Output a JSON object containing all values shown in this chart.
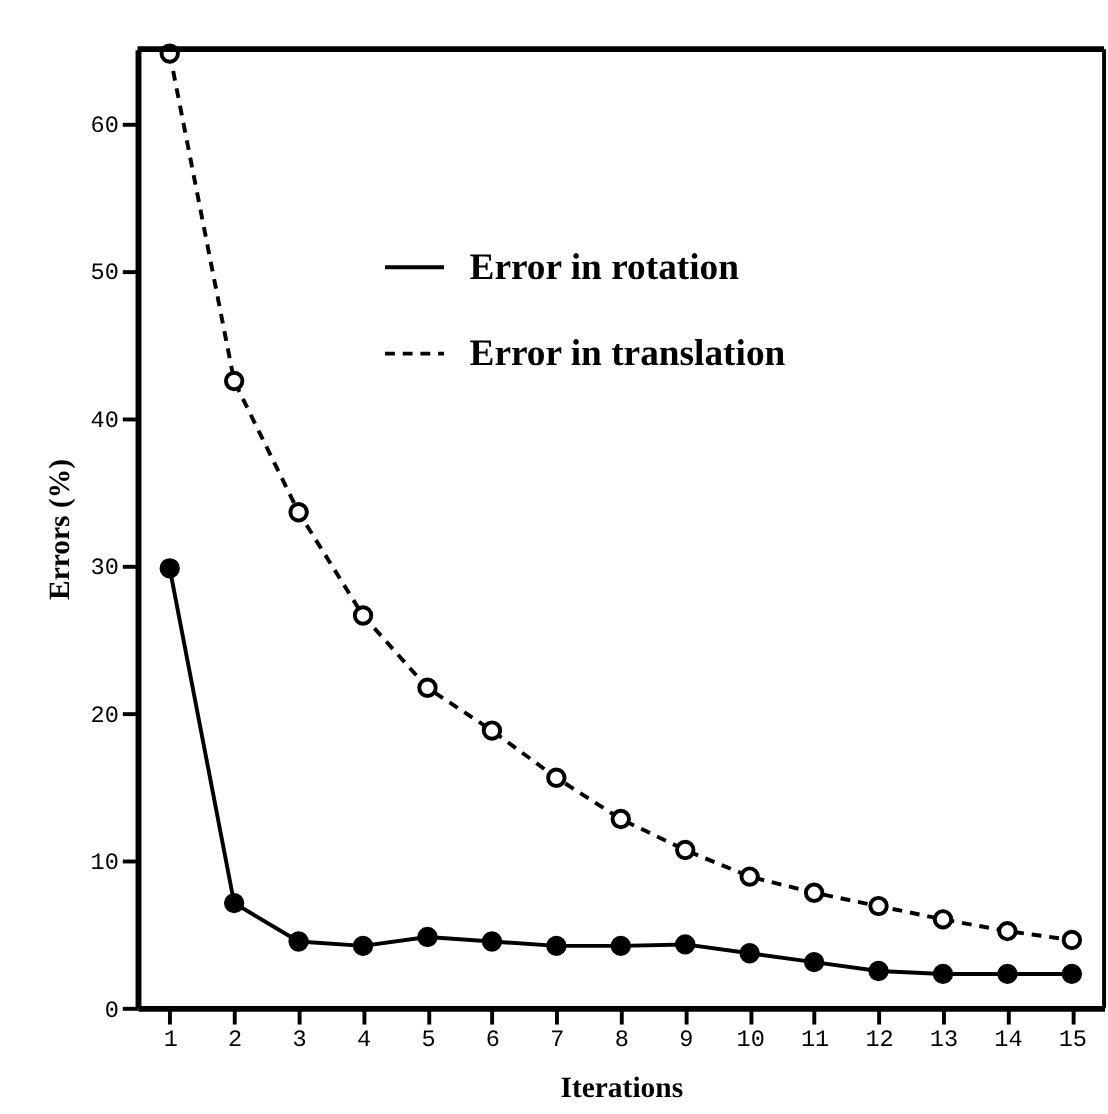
{
  "chart_data": {
    "type": "line",
    "xlabel": "Iterations",
    "ylabel": "Errors (%)",
    "x": [
      1,
      2,
      3,
      4,
      5,
      6,
      7,
      8,
      9,
      10,
      11,
      12,
      13,
      14,
      15
    ],
    "series": [
      {
        "name": "Error in rotation",
        "color": "#000000",
        "line_style": "solid",
        "marker": "circle",
        "values": [
          29.8,
          7.1,
          4.5,
          4.2,
          4.8,
          4.5,
          4.2,
          4.2,
          4.3,
          3.7,
          3.1,
          2.5,
          2.3,
          2.3,
          2.3
        ]
      },
      {
        "name": "Error in translation",
        "color": "#000000",
        "line_style": "dashed",
        "marker": "circle",
        "values": [
          64.7,
          42.5,
          33.6,
          26.6,
          21.7,
          18.8,
          15.6,
          12.8,
          10.7,
          8.9,
          7.8,
          6.9,
          6.0,
          5.2,
          4.6
        ]
      }
    ],
    "xlim": [
      0.5,
      15.5
    ],
    "xticks": [
      1,
      2,
      3,
      4,
      5,
      6,
      7,
      8,
      9,
      10,
      11,
      12,
      13,
      14,
      15
    ],
    "ylim": [
      0,
      65
    ],
    "yticks": [
      0,
      10,
      20,
      30,
      40,
      50,
      60
    ],
    "grid": false,
    "legend": "top"
  }
}
